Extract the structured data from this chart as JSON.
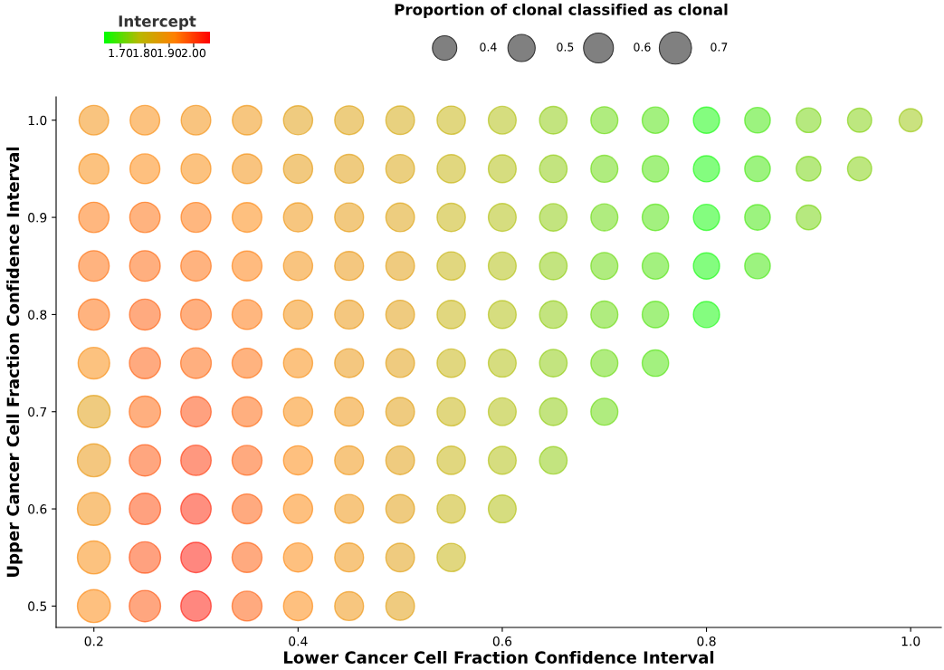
{
  "chart_data": {
    "type": "bubble",
    "xlabel": "Lower Cancer Cell Fraction Confidence Interval",
    "ylabel": "Upper Cancer Cell Fraction Confidence Interval",
    "clabel": "Intercept",
    "legend_title": "Proportion of clonal classified as clonal",
    "grid": false,
    "xlim": [
      0.163,
      1.03
    ],
    "xticks": [
      0.2,
      0.4,
      0.6,
      0.8,
      {
        "value": 1.0,
        "label": "1.0"
      }
    ],
    "ylim": [
      0.478,
      1.024
    ],
    "yticks": [
      0.5,
      0.6,
      0.7,
      0.8,
      0.9,
      {
        "value": 1.0,
        "label": "1.0"
      }
    ],
    "clim": [
      1.633,
      2.067
    ],
    "cticks": [
      {
        "value": 1.7,
        "label": "1.70"
      },
      {
        "value": 1.8,
        "label": "1.80"
      },
      {
        "value": 1.9,
        "label": "1.90"
      },
      {
        "value": 2.0,
        "label": "2.00"
      }
    ],
    "size_legend": [
      0.4,
      0.5,
      0.6,
      0.7
    ],
    "series": [
      {
        "x": [
          0.2,
          0.2,
          0.2,
          0.2,
          0.2,
          0.2,
          0.2,
          0.2,
          0.2,
          0.2,
          0.2,
          0.25,
          0.25,
          0.25,
          0.25,
          0.25,
          0.25,
          0.25,
          0.25,
          0.25,
          0.25,
          0.25,
          0.3,
          0.3,
          0.3,
          0.3,
          0.3,
          0.3,
          0.3,
          0.3,
          0.3,
          0.3,
          0.3,
          0.35,
          0.35,
          0.35,
          0.35,
          0.35,
          0.35,
          0.35,
          0.35,
          0.35,
          0.35,
          0.35,
          0.4,
          0.4,
          0.4,
          0.4,
          0.4,
          0.4,
          0.4,
          0.4,
          0.4,
          0.4,
          0.4,
          0.45,
          0.45,
          0.45,
          0.45,
          0.45,
          0.45,
          0.45,
          0.45,
          0.45,
          0.45,
          0.45,
          0.5,
          0.5,
          0.5,
          0.5,
          0.5,
          0.5,
          0.5,
          0.5,
          0.5,
          0.5,
          0.5,
          0.55,
          0.55,
          0.55,
          0.55,
          0.55,
          0.55,
          0.55,
          0.55,
          0.55,
          0.55,
          0.6,
          0.6,
          0.6,
          0.6,
          0.6,
          0.6,
          0.6,
          0.6,
          0.6,
          0.65,
          0.65,
          0.65,
          0.65,
          0.65,
          0.65,
          0.65,
          0.65,
          0.7,
          0.7,
          0.7,
          0.7,
          0.7,
          0.7,
          0.7,
          0.75,
          0.75,
          0.75,
          0.75,
          0.75,
          0.75,
          0.8,
          0.8,
          0.8,
          0.8,
          0.8,
          0.85,
          0.85,
          0.85,
          0.85,
          0.9,
          0.9,
          0.9,
          0.95,
          0.95,
          1.0
        ],
        "values": [
          1.0,
          0.95,
          0.9,
          0.85,
          0.8,
          0.75,
          0.7,
          0.65,
          0.6,
          0.55,
          0.5,
          1.0,
          0.95,
          0.9,
          0.85,
          0.8,
          0.75,
          0.7,
          0.65,
          0.6,
          0.55,
          0.5,
          1.0,
          0.95,
          0.9,
          0.85,
          0.8,
          0.75,
          0.7,
          0.65,
          0.6,
          0.55,
          0.5,
          1.0,
          0.95,
          0.9,
          0.85,
          0.8,
          0.75,
          0.7,
          0.65,
          0.6,
          0.55,
          0.5,
          1.0,
          0.95,
          0.9,
          0.85,
          0.8,
          0.75,
          0.7,
          0.65,
          0.6,
          0.55,
          0.5,
          1.0,
          0.95,
          0.9,
          0.85,
          0.8,
          0.75,
          0.7,
          0.65,
          0.6,
          0.55,
          0.5,
          1.0,
          0.95,
          0.9,
          0.85,
          0.8,
          0.75,
          0.7,
          0.65,
          0.6,
          0.55,
          0.5,
          1.0,
          0.95,
          0.9,
          0.85,
          0.8,
          0.75,
          0.7,
          0.65,
          0.6,
          0.55,
          1.0,
          0.95,
          0.9,
          0.85,
          0.8,
          0.75,
          0.7,
          0.65,
          0.6,
          1.0,
          0.95,
          0.9,
          0.85,
          0.8,
          0.75,
          0.7,
          0.65,
          1.0,
          0.95,
          0.9,
          0.85,
          0.8,
          0.75,
          0.7,
          1.0,
          0.95,
          0.9,
          0.85,
          0.8,
          0.75,
          1.0,
          0.95,
          0.9,
          0.85,
          0.8,
          1.0,
          0.95,
          0.9,
          0.85,
          1.0,
          0.95,
          0.9,
          1.0,
          0.95,
          1.0
        ],
        "sizes": [
          0.59,
          0.61,
          0.62,
          0.63,
          0.65,
          0.67,
          0.71,
          0.73,
          0.73,
          0.73,
          0.73,
          0.59,
          0.6,
          0.62,
          0.63,
          0.64,
          0.65,
          0.66,
          0.66,
          0.66,
          0.66,
          0.66,
          0.59,
          0.6,
          0.6,
          0.62,
          0.63,
          0.63,
          0.62,
          0.62,
          0.62,
          0.62,
          0.62,
          0.58,
          0.59,
          0.59,
          0.6,
          0.6,
          0.6,
          0.6,
          0.6,
          0.6,
          0.6,
          0.6,
          0.57,
          0.57,
          0.57,
          0.57,
          0.57,
          0.57,
          0.57,
          0.57,
          0.57,
          0.57,
          0.57,
          0.56,
          0.56,
          0.56,
          0.56,
          0.56,
          0.56,
          0.56,
          0.56,
          0.56,
          0.56,
          0.56,
          0.55,
          0.55,
          0.55,
          0.55,
          0.55,
          0.55,
          0.55,
          0.55,
          0.55,
          0.55,
          0.55,
          0.54,
          0.54,
          0.54,
          0.54,
          0.54,
          0.54,
          0.54,
          0.54,
          0.54,
          0.54,
          0.52,
          0.52,
          0.52,
          0.52,
          0.52,
          0.52,
          0.52,
          0.52,
          0.52,
          0.51,
          0.51,
          0.51,
          0.51,
          0.51,
          0.51,
          0.51,
          0.51,
          0.49,
          0.49,
          0.49,
          0.49,
          0.49,
          0.49,
          0.49,
          0.47,
          0.47,
          0.47,
          0.47,
          0.47,
          0.47,
          0.46,
          0.46,
          0.46,
          0.46,
          0.46,
          0.44,
          0.44,
          0.44,
          0.44,
          0.41,
          0.41,
          0.41,
          0.39,
          0.39,
          0.36
        ],
        "cvalues": [
          1.9,
          1.91,
          1.94,
          1.95,
          1.95,
          1.91,
          1.86,
          1.88,
          1.9,
          1.91,
          1.92,
          1.91,
          1.92,
          1.95,
          1.96,
          1.97,
          1.97,
          1.96,
          1.98,
          1.99,
          1.99,
          1.98,
          1.9,
          1.91,
          1.94,
          1.95,
          1.96,
          1.96,
          1.99,
          2.01,
          2.03,
          2.05,
          2.05,
          1.89,
          1.9,
          1.92,
          1.93,
          1.94,
          1.95,
          1.96,
          1.97,
          1.97,
          1.97,
          1.97,
          1.86,
          1.87,
          1.89,
          1.9,
          1.9,
          1.91,
          1.91,
          1.92,
          1.92,
          1.92,
          1.92,
          1.85,
          1.86,
          1.87,
          1.88,
          1.88,
          1.88,
          1.89,
          1.89,
          1.89,
          1.89,
          1.89,
          1.83,
          1.84,
          1.85,
          1.86,
          1.86,
          1.86,
          1.86,
          1.86,
          1.86,
          1.86,
          1.86,
          1.8,
          1.8,
          1.8,
          1.8,
          1.8,
          1.8,
          1.8,
          1.8,
          1.8,
          1.8,
          1.77,
          1.77,
          1.77,
          1.77,
          1.77,
          1.77,
          1.77,
          1.77,
          1.77,
          1.74,
          1.74,
          1.74,
          1.74,
          1.74,
          1.74,
          1.74,
          1.74,
          1.71,
          1.71,
          1.71,
          1.71,
          1.71,
          1.71,
          1.71,
          1.69,
          1.69,
          1.69,
          1.69,
          1.69,
          1.69,
          1.64,
          1.64,
          1.64,
          1.64,
          1.64,
          1.68,
          1.68,
          1.68,
          1.68,
          1.72,
          1.72,
          1.72,
          1.73,
          1.73,
          1.75
        ]
      }
    ]
  }
}
